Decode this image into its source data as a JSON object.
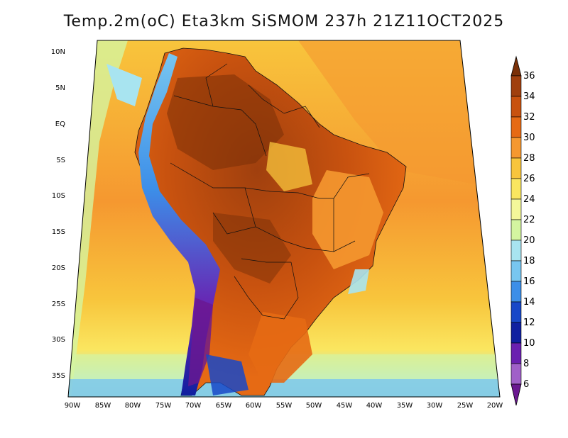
{
  "title": "Temp.2m(oC) Eta3km SiSMOM 237h 21Z11OCT2025",
  "axes": {
    "latitudes": [
      "10N",
      "5N",
      "EQ",
      "5S",
      "10S",
      "15S",
      "20S",
      "25S",
      "30S",
      "35S"
    ],
    "longitudes": [
      "90W",
      "85W",
      "80W",
      "75W",
      "70W",
      "65W",
      "60W",
      "55W",
      "50W",
      "45W",
      "40W",
      "35W",
      "30W",
      "25W",
      "20W"
    ]
  },
  "colorbar": {
    "labels": [
      "36",
      "34",
      "32",
      "30",
      "28",
      "26",
      "24",
      "22",
      "20",
      "18",
      "16",
      "14",
      "12",
      "10",
      "8",
      "6"
    ],
    "colors": [
      "#7a3008",
      "#a0400e",
      "#c8520f",
      "#e66a14",
      "#f59830",
      "#f8c53c",
      "#fae660",
      "#f4f79a",
      "#d4f5a0",
      "#a8e4f0",
      "#78c6f0",
      "#3c8ee8",
      "#1848c8",
      "#1020a0",
      "#6a20b0",
      "#a060c8",
      "#6a1890"
    ]
  }
}
